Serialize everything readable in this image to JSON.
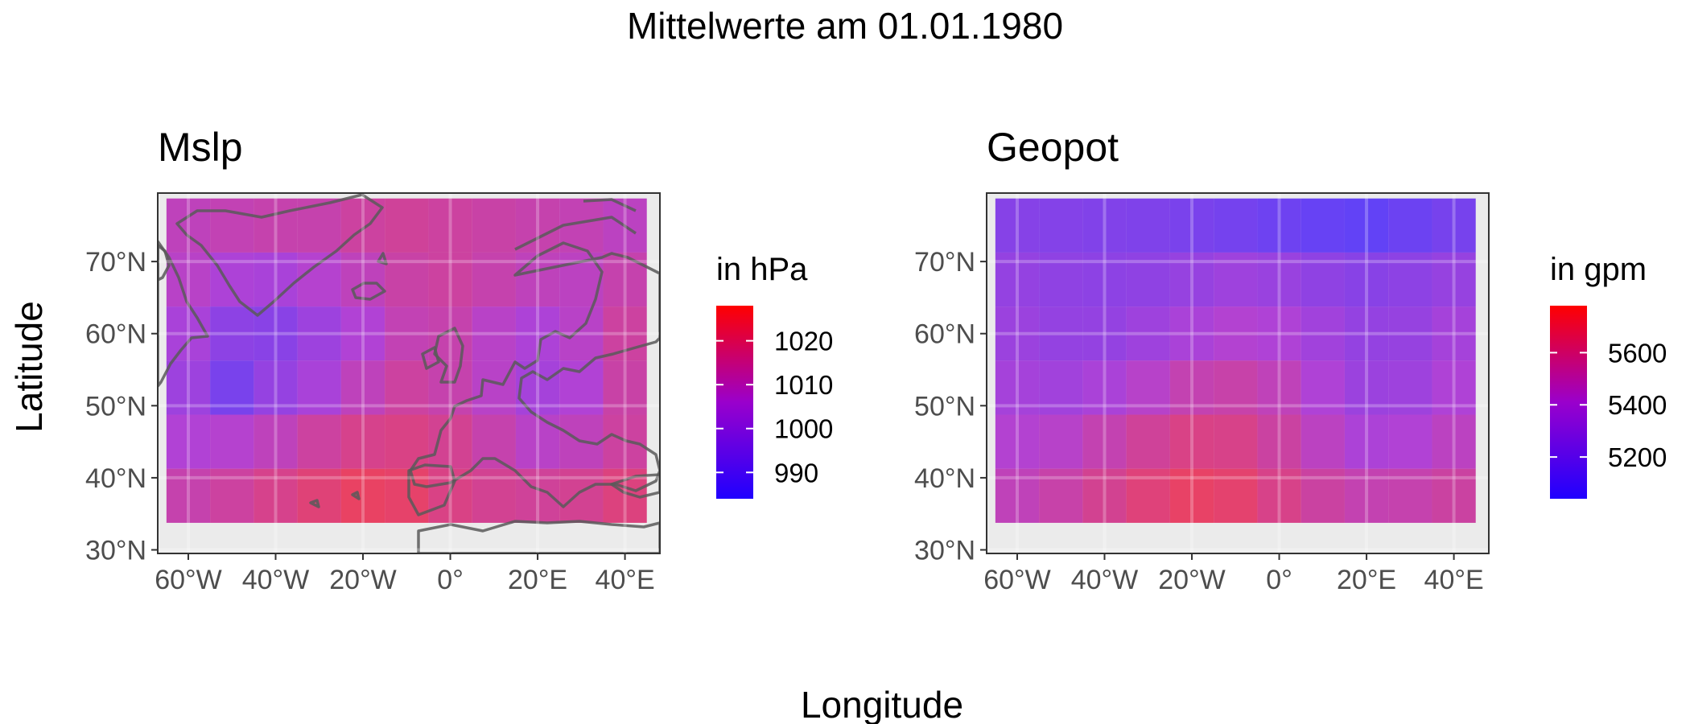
{
  "figure": {
    "title": "Mittelwerte am 01.01.1980",
    "xlabel": "Longitude",
    "ylabel": "Latitude"
  },
  "chart_data": [
    {
      "type": "heatmap",
      "title": "Mslp",
      "legend_title": "in hPa",
      "legend_ticks": [
        990,
        1000,
        1010,
        1020
      ],
      "value_range": [
        984,
        1028
      ],
      "color_low": "#1f00ff",
      "color_high": "#ff0000",
      "x_ticks": [
        {
          "value": -60,
          "label": "60°W"
        },
        {
          "value": -40,
          "label": "40°W"
        },
        {
          "value": -20,
          "label": "20°W"
        },
        {
          "value": 0,
          "label": "0°"
        },
        {
          "value": 20,
          "label": "20°E"
        },
        {
          "value": 40,
          "label": "40°E"
        }
      ],
      "y_ticks": [
        {
          "value": 30,
          "label": "30°N"
        },
        {
          "value": 40,
          "label": "40°N"
        },
        {
          "value": 50,
          "label": "50°N"
        },
        {
          "value": 60,
          "label": "60°N"
        },
        {
          "value": 70,
          "label": "70°N"
        }
      ],
      "xlim": [
        -67,
        48
      ],
      "ylim": [
        29.5,
        79.5
      ],
      "grid_lon": [
        -60,
        -50,
        -40,
        -30,
        -20,
        -10,
        0,
        10,
        20,
        30,
        40
      ],
      "grid_lat": [
        75,
        67.5,
        60,
        52.5,
        45,
        37.5
      ],
      "values": [
        [
          1010,
          1011,
          1012,
          1012,
          1014,
          1015,
          1014,
          1013,
          1012,
          1011,
          1009
        ],
        [
          1008,
          1005,
          1004,
          1007,
          1010,
          1013,
          1014,
          1012,
          1010,
          1009,
          1012
        ],
        [
          1004,
          997,
          996,
          1001,
          1006,
          1011,
          1012,
          1008,
          1005,
          1008,
          1014
        ],
        [
          1001,
          992,
          999,
          1004,
          1010,
          1014,
          1012,
          1008,
          1003,
          1006,
          1013
        ],
        [
          1006,
          1007,
          1010,
          1014,
          1017,
          1018,
          1016,
          1012,
          1008,
          1010,
          1014
        ],
        [
          1012,
          1014,
          1017,
          1020,
          1023,
          1022,
          1018,
          1016,
          1015,
          1016,
          1019
        ]
      ]
    },
    {
      "type": "heatmap",
      "title": "Geopot",
      "legend_title": "in gpm",
      "legend_ticks": [
        5200,
        5400,
        5600
      ],
      "value_range": [
        5040,
        5780
      ],
      "color_low": "#1f00ff",
      "color_high": "#ff0000",
      "x_ticks": [
        {
          "value": -60,
          "label": "60°W"
        },
        {
          "value": -40,
          "label": "40°W"
        },
        {
          "value": -20,
          "label": "20°W"
        },
        {
          "value": 0,
          "label": "0°"
        },
        {
          "value": 20,
          "label": "20°E"
        },
        {
          "value": 40,
          "label": "40°E"
        }
      ],
      "y_ticks": [
        {
          "value": 30,
          "label": "30°N"
        },
        {
          "value": 40,
          "label": "40°N"
        },
        {
          "value": 50,
          "label": "50°N"
        },
        {
          "value": 60,
          "label": "60°N"
        },
        {
          "value": 70,
          "label": "70°N"
        }
      ],
      "xlim": [
        -67,
        48
      ],
      "ylim": [
        29.5,
        79.5
      ],
      "grid_lon": [
        -60,
        -50,
        -40,
        -30,
        -20,
        -10,
        0,
        10,
        20,
        30,
        40
      ],
      "grid_lat": [
        75,
        67.5,
        60,
        52.5,
        45,
        37.5
      ],
      "values": [
        [
          5230,
          5220,
          5210,
          5200,
          5180,
          5160,
          5130,
          5100,
          5080,
          5120,
          5170
        ],
        [
          5290,
          5270,
          5260,
          5270,
          5300,
          5330,
          5310,
          5270,
          5240,
          5260,
          5300
        ],
        [
          5320,
          5290,
          5290,
          5330,
          5380,
          5420,
          5400,
          5340,
          5290,
          5300,
          5360
        ],
        [
          5360,
          5340,
          5380,
          5440,
          5500,
          5520,
          5480,
          5400,
          5320,
          5330,
          5400
        ],
        [
          5420,
          5440,
          5500,
          5560,
          5610,
          5600,
          5540,
          5460,
          5390,
          5410,
          5460
        ],
        [
          5480,
          5520,
          5580,
          5640,
          5690,
          5670,
          5600,
          5540,
          5500,
          5510,
          5540
        ]
      ]
    }
  ]
}
